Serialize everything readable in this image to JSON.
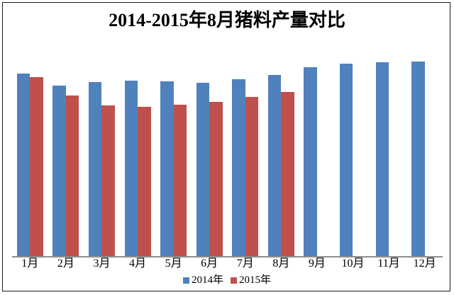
{
  "chart_data": {
    "type": "bar",
    "title": "2014-2015年8月猪料产量对比",
    "categories": [
      "1月",
      "2月",
      "3月",
      "4月",
      "5月",
      "6月",
      "7月",
      "8月",
      "9月",
      "10月",
      "11月",
      "12月"
    ],
    "series": [
      {
        "name": "2014年",
        "color": "#4F81BD",
        "values": [
          94.0,
          87.8,
          89.4,
          90.3,
          89.8,
          89.3,
          91.1,
          93.3,
          97.1,
          99.1,
          99.8,
          100.0
        ]
      },
      {
        "name": "2015年",
        "color": "#C0504D",
        "values": [
          92.2,
          82.8,
          77.5,
          77.0,
          78.0,
          79.5,
          82.0,
          84.5,
          null,
          null,
          null,
          null
        ]
      }
    ],
    "ylim": [
      0,
      104.5
    ],
    "value_axis_visible": false,
    "gridlines": false,
    "legend_position": "bottom",
    "axis_line_color": "#8e8e8e",
    "values_are_relative_estimates": true,
    "relative_scale_note": "no value-axis labels in chart; values estimated from bar heights, December 2014 = 100"
  },
  "frame": {
    "border_color": "#1a1a1a",
    "background": "#ffffff"
  }
}
